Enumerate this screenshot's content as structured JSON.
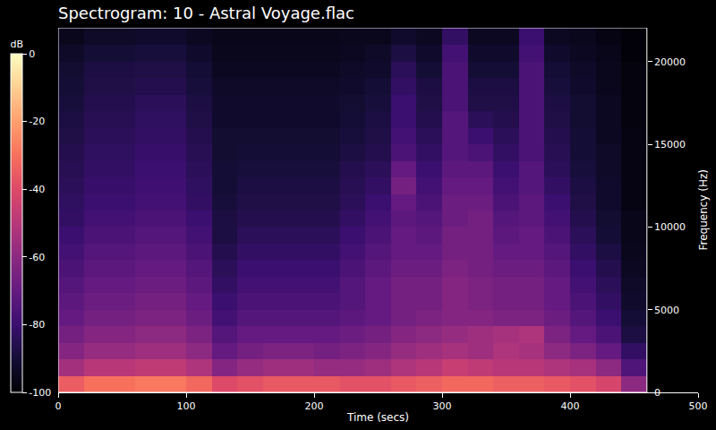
{
  "chart_data": {
    "type": "heatmap",
    "title": "Spectrogram: 10 - Astral Voyage.flac",
    "x_label": "Time (secs)",
    "y_label": "Frequency (Hz)",
    "x_bins": [
      0,
      20,
      40,
      60,
      80,
      100,
      120,
      140,
      160,
      180,
      200,
      220,
      240,
      260,
      280,
      300,
      320,
      340,
      360,
      380,
      400,
      420,
      440,
      460
    ],
    "y_bins": [
      0,
      1000,
      2000,
      3000,
      4000,
      5000,
      6000,
      7000,
      8000,
      9000,
      10000,
      11000,
      12000,
      13000,
      14000,
      15000,
      16000,
      17000,
      18000,
      19000,
      20000,
      21000,
      22050
    ],
    "cells": [
      [
        -35,
        -30,
        -30,
        -28,
        -28,
        -32,
        -40,
        -38,
        -36,
        -36,
        -36,
        -38,
        -38,
        -36,
        -34,
        -32,
        -32,
        -34,
        -34,
        -36,
        -38,
        -42,
        -60
      ],
      [
        -55,
        -50,
        -50,
        -48,
        -48,
        -52,
        -62,
        -58,
        -56,
        -56,
        -58,
        -58,
        -56,
        -52,
        -50,
        -46,
        -48,
        -50,
        -50,
        -52,
        -54,
        -60,
        -75
      ],
      [
        -62,
        -58,
        -58,
        -56,
        -56,
        -60,
        -70,
        -66,
        -64,
        -64,
        -66,
        -64,
        -62,
        -58,
        -56,
        -54,
        -56,
        -52,
        -54,
        -60,
        -64,
        -70,
        -82
      ],
      [
        -66,
        -62,
        -62,
        -60,
        -60,
        -64,
        -74,
        -70,
        -70,
        -70,
        -70,
        -68,
        -66,
        -62,
        -60,
        -58,
        -56,
        -54,
        -52,
        -64,
        -70,
        -76,
        -88
      ],
      [
        -70,
        -66,
        -66,
        -64,
        -64,
        -68,
        -78,
        -74,
        -74,
        -74,
        -74,
        -72,
        -70,
        -66,
        -64,
        -62,
        -62,
        -64,
        -64,
        -68,
        -74,
        -80,
        -90
      ],
      [
        -72,
        -68,
        -68,
        -66,
        -66,
        -70,
        -80,
        -76,
        -76,
        -76,
        -76,
        -74,
        -70,
        -66,
        -66,
        -62,
        -64,
        -66,
        -66,
        -70,
        -76,
        -82,
        -92
      ],
      [
        -74,
        -70,
        -70,
        -68,
        -68,
        -72,
        -82,
        -78,
        -78,
        -78,
        -78,
        -74,
        -70,
        -66,
        -66,
        -62,
        -64,
        -66,
        -66,
        -70,
        -78,
        -84,
        -93
      ],
      [
        -76,
        -72,
        -72,
        -70,
        -70,
        -74,
        -84,
        -80,
        -80,
        -80,
        -80,
        -76,
        -72,
        -68,
        -68,
        -64,
        -66,
        -68,
        -68,
        -72,
        -80,
        -86,
        -94
      ],
      [
        -78,
        -74,
        -74,
        -72,
        -72,
        -76,
        -86,
        -82,
        -82,
        -82,
        -82,
        -78,
        -74,
        -70,
        -70,
        -66,
        -66,
        -70,
        -70,
        -74,
        -82,
        -88,
        -95
      ],
      [
        -80,
        -76,
        -76,
        -74,
        -74,
        -78,
        -88,
        -84,
        -84,
        -84,
        -84,
        -80,
        -76,
        -70,
        -72,
        -66,
        -66,
        -72,
        -70,
        -76,
        -84,
        -90,
        -96
      ],
      [
        -82,
        -78,
        -78,
        -76,
        -76,
        -80,
        -88,
        -86,
        -86,
        -86,
        -86,
        -82,
        -78,
        -72,
        -74,
        -68,
        -66,
        -74,
        -72,
        -78,
        -86,
        -91,
        -96
      ],
      [
        -83,
        -80,
        -80,
        -78,
        -78,
        -82,
        -89,
        -87,
        -87,
        -87,
        -87,
        -84,
        -80,
        -70,
        -76,
        -68,
        -68,
        -76,
        -72,
        -80,
        -87,
        -92,
        -97
      ],
      [
        -84,
        -81,
        -81,
        -79,
        -79,
        -83,
        -90,
        -88,
        -88,
        -88,
        -88,
        -85,
        -82,
        -66,
        -78,
        -70,
        -70,
        -78,
        -74,
        -82,
        -88,
        -92,
        -97
      ],
      [
        -85,
        -82,
        -82,
        -80,
        -80,
        -84,
        -90,
        -89,
        -89,
        -89,
        -89,
        -86,
        -84,
        -70,
        -80,
        -72,
        -72,
        -80,
        -74,
        -84,
        -89,
        -93,
        -97
      ],
      [
        -86,
        -83,
        -83,
        -81,
        -81,
        -85,
        -91,
        -90,
        -90,
        -90,
        -90,
        -88,
        -86,
        -76,
        -82,
        -74,
        -76,
        -82,
        -76,
        -85,
        -90,
        -93,
        -97
      ],
      [
        -87,
        -84,
        -84,
        -82,
        -82,
        -86,
        -91,
        -91,
        -91,
        -91,
        -91,
        -89,
        -87,
        -78,
        -84,
        -74,
        -80,
        -84,
        -76,
        -86,
        -90,
        -94,
        -97
      ],
      [
        -88,
        -85,
        -85,
        -83,
        -83,
        -87,
        -92,
        -92,
        -92,
        -92,
        -92,
        -90,
        -88,
        -80,
        -86,
        -74,
        -84,
        -86,
        -76,
        -87,
        -91,
        -94,
        -98
      ],
      [
        -89,
        -86,
        -86,
        -84,
        -84,
        -88,
        -92,
        -92,
        -92,
        -92,
        -92,
        -91,
        -89,
        -80,
        -87,
        -76,
        -87,
        -87,
        -76,
        -88,
        -91,
        -94,
        -98
      ],
      [
        -90,
        -87,
        -87,
        -86,
        -86,
        -89,
        -93,
        -93,
        -93,
        -93,
        -93,
        -92,
        -90,
        -82,
        -88,
        -76,
        -88,
        -88,
        -76,
        -89,
        -92,
        -95,
        -98
      ],
      [
        -91,
        -88,
        -88,
        -87,
        -87,
        -90,
        -94,
        -94,
        -94,
        -94,
        -94,
        -93,
        -92,
        -84,
        -90,
        -76,
        -90,
        -90,
        -76,
        -90,
        -93,
        -95,
        -98
      ],
      [
        -93,
        -90,
        -90,
        -89,
        -89,
        -92,
        -95,
        -95,
        -95,
        -95,
        -95,
        -94,
        -93,
        -88,
        -92,
        -78,
        -92,
        -92,
        -78,
        -92,
        -94,
        -96,
        -99
      ],
      [
        -95,
        -93,
        -93,
        -92,
        -92,
        -94,
        -96,
        -96,
        -96,
        -96,
        -96,
        -95,
        -95,
        -92,
        -94,
        -82,
        -94,
        -94,
        -80,
        -94,
        -95,
        -97,
        -99
      ]
    ],
    "xlim": [
      0,
      500
    ],
    "xticks": [
      0,
      100,
      200,
      300,
      400,
      500
    ],
    "ylim": [
      0,
      22050
    ],
    "yticks": [
      0,
      5000,
      10000,
      15000,
      20000
    ],
    "colorbar_label": "dB",
    "colorbar_range": [
      -100,
      0
    ],
    "colorbar_ticks": [
      0,
      -20,
      -40,
      -60,
      -80,
      -100
    ],
    "grid": false
  }
}
